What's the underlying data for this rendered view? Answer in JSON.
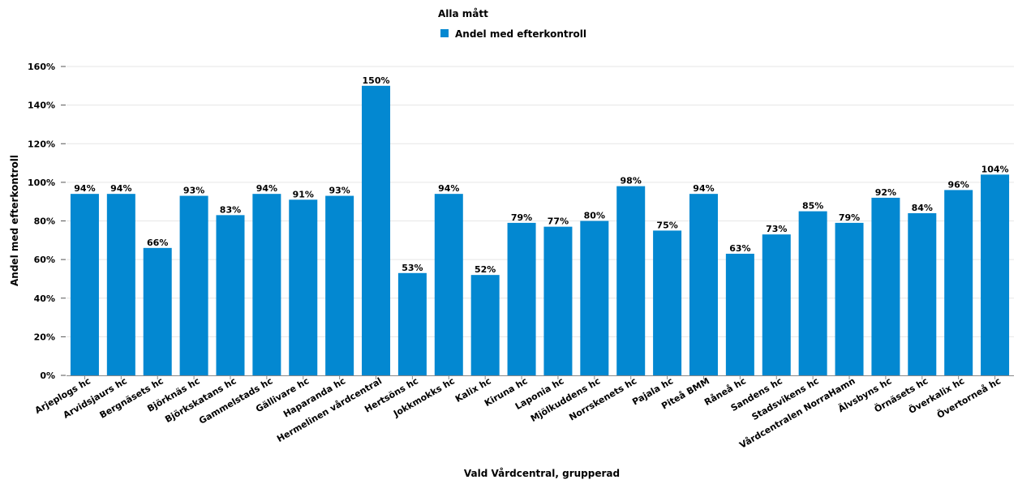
{
  "chart_data": {
    "type": "bar",
    "legend": {
      "title": "Alla mått",
      "placement": "top-center"
    },
    "series": [
      {
        "name": "Andel med efterkontroll",
        "color": "#0388d1",
        "values": [
          94,
          94,
          66,
          93,
          83,
          94,
          91,
          93,
          150,
          53,
          94,
          52,
          79,
          77,
          80,
          98,
          75,
          94,
          63,
          73,
          85,
          79,
          92,
          84,
          96,
          104
        ],
        "labels": [
          "94%",
          "94%",
          "66%",
          "93%",
          "83%",
          "94%",
          "91%",
          "93%",
          "150%",
          "53%",
          "94%",
          "52%",
          "79%",
          "77%",
          "80%",
          "98%",
          "75%",
          "94%",
          "63%",
          "73%",
          "85%",
          "79%",
          "92%",
          "84%",
          "96%",
          "104%"
        ]
      }
    ],
    "categories": [
      "Arjeplogs hc",
      "Arvidsjaurs hc",
      "Bergnäsets hc",
      "Björknäs hc",
      "Björkskatans hc",
      "Gammelstads hc",
      "Gällivare hc",
      "Haparanda hc",
      "Hermelinen vårdcentral",
      "Hertsöns hc",
      "Jokkmokks hc",
      "Kalix hc",
      "Kiruna hc",
      "Laponia hc",
      "Mjölkuddens hc",
      "Norrskenets hc",
      "Pajala hc",
      "Piteå BMM",
      "Råneå hc",
      "Sandens hc",
      "Stadsvikens hc",
      "Vårdcentralen NorraHamn",
      "Älvsbyns hc",
      "Örnäsets hc",
      "Överkalix hc",
      "Övertorneå hc"
    ],
    "xlabel": "Vald Vårdcentral, grupperad",
    "ylabel": "Andel med efterkontroll",
    "ylim": [
      0,
      160
    ],
    "yticks": [
      0,
      20,
      40,
      60,
      80,
      100,
      120,
      140,
      160
    ],
    "ytick_labels": [
      "0%",
      "20%",
      "40%",
      "60%",
      "80%",
      "100%",
      "120%",
      "140%",
      "160%"
    ],
    "grid": true
  }
}
